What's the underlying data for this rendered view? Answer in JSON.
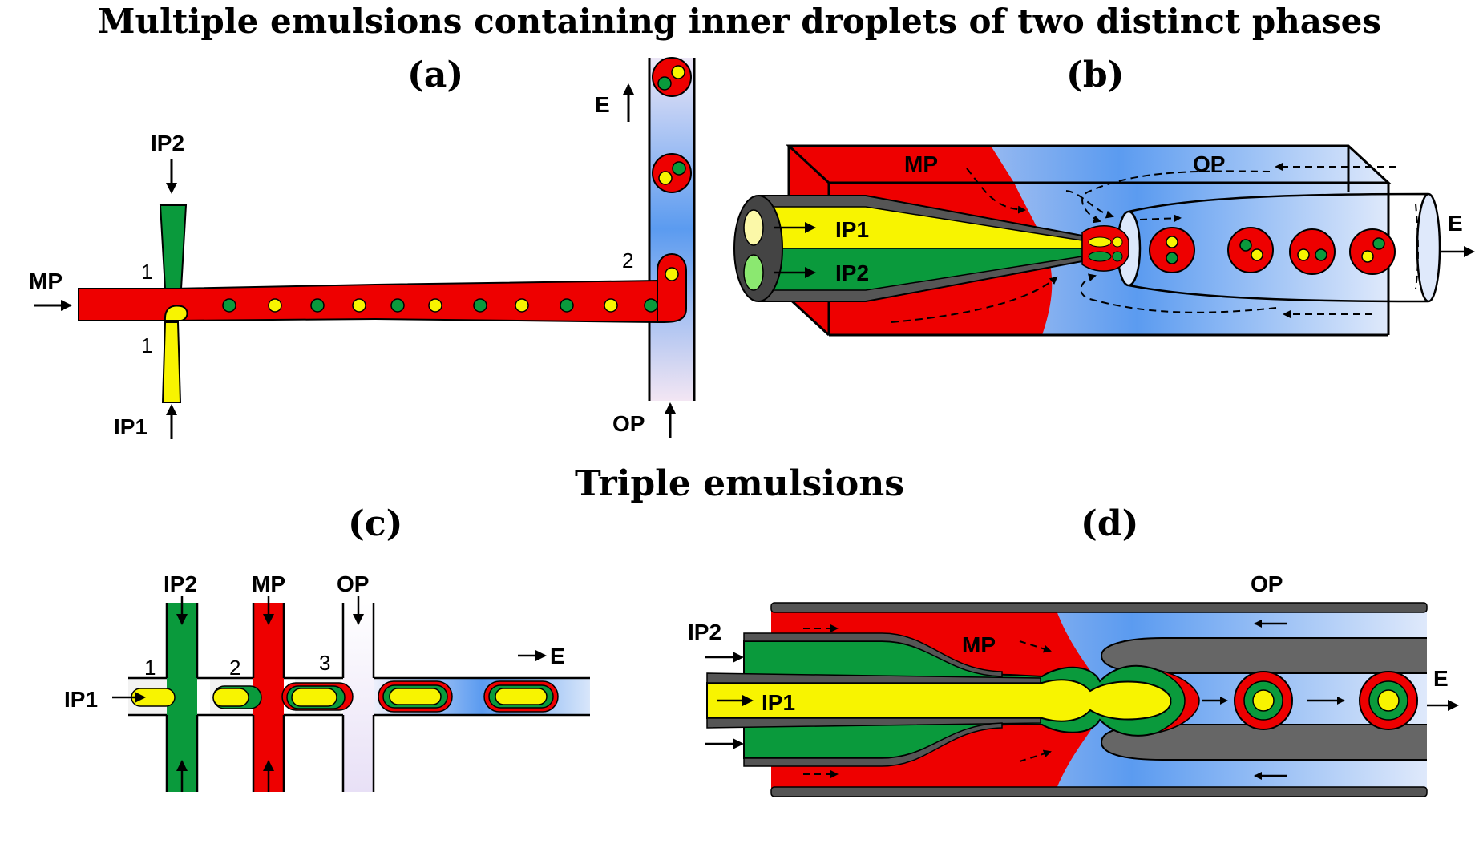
{
  "titles": {
    "main": "Multiple emulsions containing inner droplets of two distinct phases",
    "triple": "Triple emulsions"
  },
  "panels": {
    "a": "(a)",
    "b": "(b)",
    "c": "(c)",
    "d": "(d)"
  },
  "labels": {
    "ip1": "IP1",
    "ip2": "IP2",
    "mp": "MP",
    "op": "OP",
    "e": "E",
    "j1": "1",
    "j2": "2",
    "j3": "3"
  },
  "colors": {
    "middle_phase": "#ee0000",
    "inner_phase_1": "#f8f400",
    "inner_phase_2": "#0a9a3c",
    "outer_phase": "#5b9bf0",
    "capillary": "#555555"
  }
}
